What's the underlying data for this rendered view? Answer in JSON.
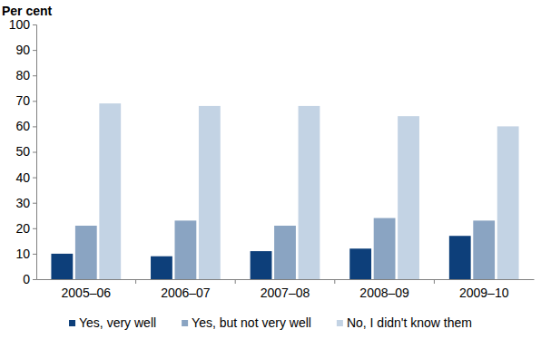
{
  "chart_data": {
    "type": "bar",
    "y_label": "Per cent",
    "categories": [
      "2005–06",
      "2006–07",
      "2007–08",
      "2008–09",
      "2009–10"
    ],
    "series": [
      {
        "name": "Yes, very well",
        "color": "#0d3f7a",
        "values": [
          10,
          9,
          11,
          12,
          17
        ]
      },
      {
        "name": "Yes, but not very well",
        "color": "#8aa4c2",
        "values": [
          21,
          23,
          21,
          24,
          23
        ]
      },
      {
        "name": "No, I didn't know them",
        "color": "#c3d3e4",
        "values": [
          69,
          68,
          68,
          64,
          60
        ]
      }
    ],
    "ylim": [
      0,
      100
    ],
    "yticks": [
      0,
      10,
      20,
      30,
      40,
      50,
      60,
      70,
      80,
      90,
      100
    ],
    "grid": false,
    "legend": "bottom"
  }
}
